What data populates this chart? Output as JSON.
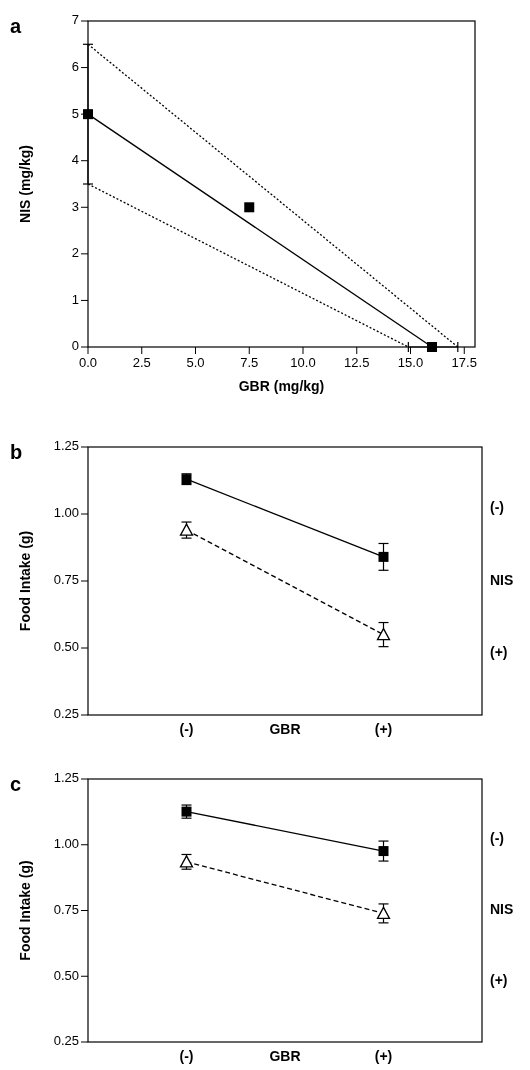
{
  "chart_data": [
    {
      "type": "scatter",
      "xlabel": "GBR (mg/kg)",
      "ylabel": "NIS (mg/kg)",
      "annotations": [
        "a"
      ],
      "xlim": [
        0,
        18
      ],
      "ylim": [
        0,
        7
      ],
      "xticks": [
        {
          "value": 0,
          "label": "0.0"
        },
        {
          "value": 2.5,
          "label": "2.5"
        },
        {
          "value": 5,
          "label": "5.0"
        },
        {
          "value": 7.5,
          "label": "7.5"
        },
        {
          "value": 10,
          "label": "10.0"
        },
        {
          "value": 12.5,
          "label": "12.5"
        },
        {
          "value": 15,
          "label": "15.0"
        },
        {
          "value": 17.5,
          "label": "17.5"
        }
      ],
      "yticks": [
        0,
        1,
        2,
        3,
        4,
        5,
        6,
        7
      ],
      "series": [
        {
          "type": "line",
          "color": "#000000",
          "line_style": "solid",
          "x": [
            0,
            16
          ],
          "values": [
            5,
            0
          ]
        },
        {
          "type": "line",
          "color": "#000000",
          "line_style": "dotted",
          "x": [
            0,
            17.2
          ],
          "values": [
            6.5,
            0
          ]
        },
        {
          "type": "line",
          "color": "#000000",
          "line_style": "dotted",
          "x": [
            0,
            14.9
          ],
          "values": [
            3.5,
            0
          ]
        },
        {
          "color": "#000000",
          "marker": "square",
          "x": [
            0,
            7.5,
            16
          ],
          "values": [
            5,
            3,
            0
          ],
          "errors": [
            [
              3.5,
              6.5
            ],
            null,
            null
          ],
          "xerrors": [
            null,
            null,
            [
              14.9,
              17.2
            ]
          ]
        }
      ]
    },
    {
      "type": "line",
      "xlabel": "GBR",
      "ylabel": "Food Intake (g)",
      "annotations": [
        "b"
      ],
      "legend": "right",
      "legend_title": "NIS",
      "categories": [
        "(-)",
        "(+)"
      ],
      "ylim": [
        0.25,
        1.25
      ],
      "yticks": [
        {
          "value": 0.25,
          "label": "0.25"
        },
        {
          "value": 0.5,
          "label": "0.50"
        },
        {
          "value": 0.75,
          "label": "0.75"
        },
        {
          "value": 1,
          "label": "1.00"
        },
        {
          "value": 1.25,
          "label": "1.25"
        }
      ],
      "series": [
        {
          "name": "(-)",
          "color": "#000000",
          "marker": "square",
          "line_style": "solid",
          "values": [
            1.13,
            0.84
          ],
          "errors": [
            0.02,
            0.05
          ]
        },
        {
          "name": "(+)",
          "color": "#000000",
          "marker": "triangle",
          "line_style": "dashed",
          "values": [
            0.94,
            0.55
          ],
          "errors": [
            0.03,
            0.045
          ]
        }
      ]
    },
    {
      "type": "line",
      "xlabel": "GBR",
      "ylabel": "Food Intake (g)",
      "annotations": [
        "c"
      ],
      "legend": "right",
      "legend_title": "NIS",
      "categories": [
        "(-)",
        "(+)"
      ],
      "ylim": [
        0.25,
        1.25
      ],
      "yticks": [
        {
          "value": 0.25,
          "label": "0.25"
        },
        {
          "value": 0.5,
          "label": "0.50"
        },
        {
          "value": 0.75,
          "label": "0.75"
        },
        {
          "value": 1,
          "label": "1.00"
        },
        {
          "value": 1.25,
          "label": "1.25"
        }
      ],
      "series": [
        {
          "name": "(-)",
          "color": "#000000",
          "marker": "square",
          "line_style": "solid",
          "values": [
            1.126,
            0.976
          ],
          "errors": [
            0.025,
            0.038
          ]
        },
        {
          "name": "(+)",
          "color": "#000000",
          "marker": "triangle",
          "line_style": "dashed",
          "values": [
            0.935,
            0.739
          ],
          "errors": [
            0.028,
            0.036
          ]
        }
      ]
    }
  ]
}
